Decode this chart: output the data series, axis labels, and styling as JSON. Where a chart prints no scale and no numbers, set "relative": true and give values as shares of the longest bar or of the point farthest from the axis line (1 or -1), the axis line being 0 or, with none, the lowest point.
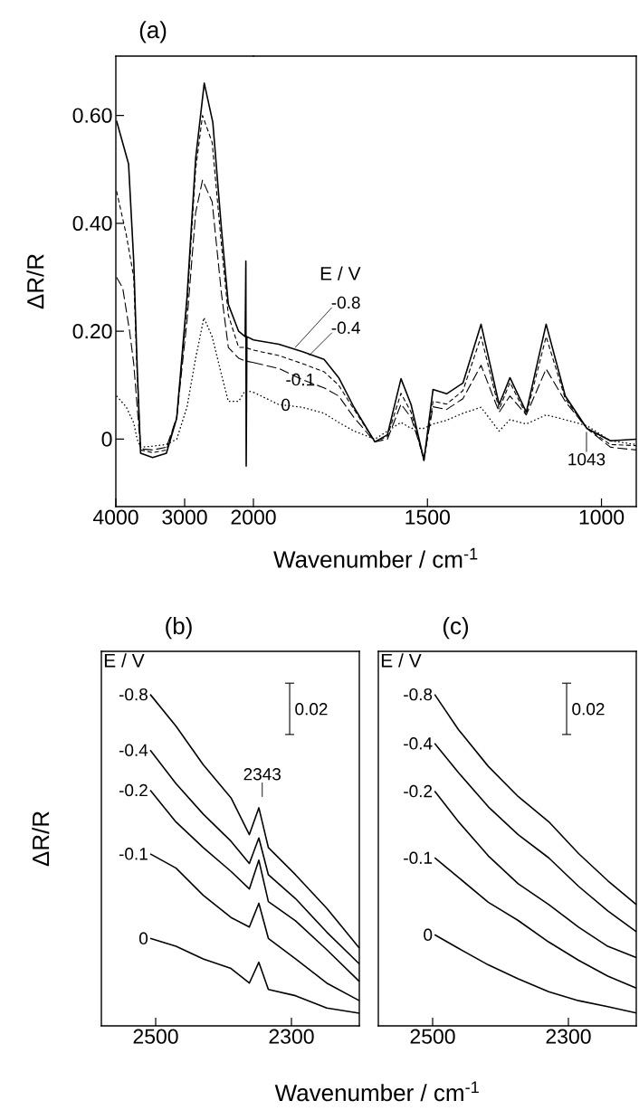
{
  "chart_data": [
    {
      "type": "line",
      "title": "(a)",
      "ylabel": "ΔR/R",
      "xlim": [
        4000,
        2000
      ],
      "ylim": [
        -0.125,
        0.71
      ],
      "xticks": [
        4000,
        3000,
        2000
      ],
      "yticks": [
        0,
        {
          "value": 0.2,
          "label": "0.20"
        },
        {
          "value": 0.4,
          "label": "0.40"
        },
        {
          "value": 0.6,
          "label": "0.60"
        }
      ],
      "series": [
        {
          "color": "#000000",
          "line_style": "solid",
          "x": [
            3990,
            3815,
            3740,
            3690,
            3640,
            3465,
            3265,
            3115,
            2965,
            2840,
            2715,
            2590,
            2465,
            2365,
            2215,
            2120,
            2110,
            2105,
            2095,
            2000
          ],
          "values": [
            0.59,
            0.51,
            0.33,
            0.135,
            -0.026,
            -0.034,
            -0.026,
            0.039,
            0.264,
            0.52,
            0.66,
            0.587,
            0.39,
            0.25,
            0.2,
            0.19,
            0.33,
            -0.05,
            0.19,
            0.184
          ]
        },
        {
          "color": "#000000",
          "line_style": "dashed",
          "x": [
            3990,
            3850,
            3740,
            3690,
            3640,
            3465,
            3265,
            3115,
            2965,
            2840,
            2740,
            2600,
            2465,
            2365,
            2215,
            2120,
            2000
          ],
          "values": [
            0.46,
            0.38,
            0.3,
            0.12,
            -0.02,
            -0.025,
            -0.02,
            0.04,
            0.25,
            0.5,
            0.6,
            0.55,
            0.36,
            0.23,
            0.17,
            0.17,
            0.165
          ]
        },
        {
          "color": "#000000",
          "line_style": "dashed",
          "x": [
            3990,
            3900,
            3800,
            3740,
            3690,
            3640,
            3465,
            3265,
            3115,
            2965,
            2840,
            2740,
            2600,
            2465,
            2365,
            2215,
            2120,
            2000
          ],
          "values": [
            0.3,
            0.28,
            0.2,
            0.14,
            0.06,
            -0.018,
            -0.02,
            -0.015,
            0.04,
            0.22,
            0.42,
            0.48,
            0.44,
            0.27,
            0.17,
            0.15,
            0.145,
            0.142
          ]
        },
        {
          "color": "#000000",
          "line_style": "dotted",
          "x": [
            3990,
            3850,
            3740,
            3690,
            3640,
            3465,
            3265,
            3115,
            2965,
            2840,
            2720,
            2600,
            2465,
            2365,
            2215,
            2120,
            2000
          ],
          "values": [
            0.08,
            0.06,
            0.03,
            0.0,
            -0.015,
            -0.013,
            -0.01,
            0.0,
            0.06,
            0.15,
            0.225,
            0.19,
            0.12,
            0.07,
            0.07,
            0.09,
            0.087
          ]
        }
      ]
    },
    {
      "type": "line",
      "xlabel": "Wavenumber / cm$^{-1}$",
      "legend_title": "E / V",
      "xlim": [
        2000,
        900
      ],
      "ylim": [
        -0.125,
        0.71
      ],
      "xticks": [
        1500,
        1000
      ],
      "tick_labels": "x",
      "annotations": [
        {
          "text": "1043",
          "x": 1043,
          "y": 0.02
        }
      ],
      "x": [
        2000,
        1927,
        1859,
        1797,
        1755,
        1711,
        1651,
        1615,
        1576,
        1547,
        1510,
        1484,
        1445,
        1398,
        1346,
        1294,
        1263,
        1216,
        1159,
        1104,
        1042,
        974,
        900
      ],
      "series": [
        {
          "name": "-0.8",
          "color": "#000000",
          "line_style": "solid",
          "values": [
            0.184,
            0.176,
            0.162,
            0.148,
            0.114,
            0.059,
            -0.005,
            0.008,
            0.112,
            0.064,
            -0.039,
            0.092,
            0.084,
            0.104,
            0.213,
            0.064,
            0.114,
            0.05,
            0.213,
            0.08,
            0.02,
            -0.003,
            0.0
          ]
        },
        {
          "name": "-0.4",
          "color": "#000000",
          "line_style": "dashed",
          "values": [
            0.165,
            0.155,
            0.14,
            0.125,
            0.1,
            0.055,
            -0.005,
            0.005,
            0.085,
            0.05,
            -0.04,
            0.07,
            0.065,
            0.09,
            0.19,
            0.055,
            0.105,
            0.045,
            0.19,
            0.075,
            0.02,
            -0.01,
            -0.012
          ]
        },
        {
          "name": "-0.1",
          "color": "#000000",
          "line_style": "dashed",
          "values": [
            0.142,
            0.131,
            0.11,
            0.095,
            0.08,
            0.04,
            -0.005,
            0.0,
            0.065,
            0.04,
            -0.035,
            0.06,
            0.055,
            0.075,
            0.137,
            0.05,
            0.08,
            0.045,
            0.13,
            0.07,
            0.02,
            -0.015,
            -0.02
          ]
        },
        {
          "name": "0",
          "color": "#000000",
          "line_style": "dotted",
          "values": [
            0.087,
            0.064,
            0.059,
            0.048,
            0.031,
            0.015,
            0.0,
            0.015,
            0.031,
            0.02,
            0.02,
            0.028,
            0.035,
            0.048,
            0.059,
            0.015,
            0.036,
            0.028,
            0.045,
            0.036,
            0.025,
            -0.003,
            -0.01
          ]
        }
      ]
    },
    {
      "type": "line",
      "title": "(b)",
      "ylabel": "ΔR/R",
      "xlabel": "Wavenumber / cm$^{-1}$",
      "legend_title": "E / V",
      "relative": true,
      "xlim": [
        2580,
        2200
      ],
      "xticks": [
        2500,
        2300
      ],
      "annotations": [
        "0.02",
        {
          "text": "2343",
          "x": 2343,
          "y": 0.658
        }
      ],
      "x": [
        2508,
        2470,
        2430,
        2389,
        2362,
        2348,
        2334,
        2294,
        2248,
        2200
      ],
      "series": [
        {
          "name": "-0.8",
          "color": "#000000",
          "values": [
            1.0,
            0.904,
            0.788,
            0.688,
            0.577,
            0.658,
            0.538,
            0.456,
            0.355,
            0.235
          ]
        },
        {
          "name": "-0.4",
          "color": "#000000",
          "values": [
            0.832,
            0.731,
            0.639,
            0.557,
            0.49,
            0.567,
            0.456,
            0.384,
            0.283,
            0.187
          ]
        },
        {
          "name": "-0.2",
          "color": "#000000",
          "values": [
            0.711,
            0.615,
            0.538,
            0.466,
            0.413,
            0.5,
            0.375,
            0.317,
            0.23,
            0.134
          ]
        },
        {
          "name": "-0.1",
          "color": "#000000",
          "values": [
            0.519,
            0.476,
            0.394,
            0.327,
            0.298,
            0.37,
            0.264,
            0.202,
            0.129,
            0.076
          ]
        },
        {
          "name": "0",
          "color": "#000000",
          "values": [
            0.264,
            0.24,
            0.202,
            0.173,
            0.129,
            0.192,
            0.11,
            0.091,
            0.054,
            0.038
          ]
        }
      ]
    },
    {
      "type": "line",
      "title": "(c)",
      "legend_title": "E / V",
      "relative": true,
      "xlim": [
        2580,
        2200
      ],
      "xticks": [
        2500,
        2300
      ],
      "annotations": [
        "0.02"
      ],
      "x": [
        2497,
        2462,
        2418,
        2374,
        2329,
        2285,
        2242,
        2200
      ],
      "series": [
        {
          "name": "-0.8",
          "color": "#000000",
          "values": [
            1.0,
            0.894,
            0.783,
            0.692,
            0.616,
            0.52,
            0.438,
            0.366
          ]
        },
        {
          "name": "-0.4",
          "color": "#000000",
          "values": [
            0.852,
            0.764,
            0.661,
            0.577,
            0.507,
            0.421,
            0.347,
            0.284
          ]
        },
        {
          "name": "-0.2",
          "color": "#000000",
          "values": [
            0.708,
            0.616,
            0.513,
            0.429,
            0.366,
            0.298,
            0.24,
            0.206
          ]
        },
        {
          "name": "-0.1",
          "color": "#000000",
          "values": [
            0.507,
            0.448,
            0.373,
            0.318,
            0.253,
            0.198,
            0.15,
            0.114
          ]
        },
        {
          "name": "0",
          "color": "#000000",
          "values": [
            0.275,
            0.234,
            0.184,
            0.142,
            0.103,
            0.076,
            0.058,
            0.039
          ]
        }
      ]
    }
  ]
}
